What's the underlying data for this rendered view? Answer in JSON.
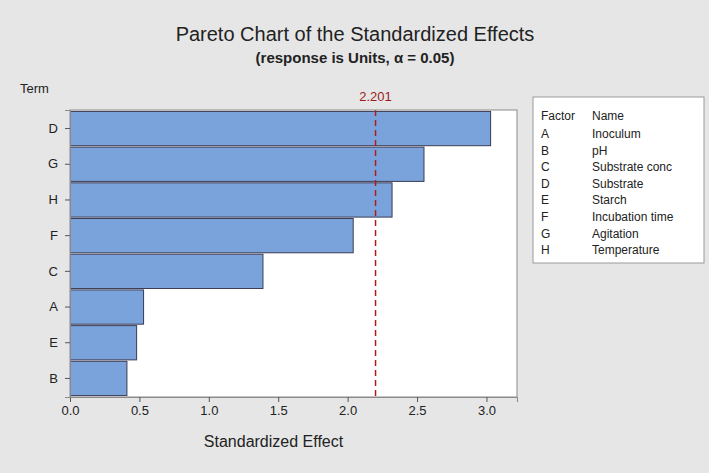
{
  "chart_data": {
    "type": "bar",
    "orientation": "horizontal",
    "title": "Pareto Chart of the Standardized Effects",
    "subtitle": "(response is Units, α = 0.05)",
    "y_label": "Term",
    "x_label": "Standardized Effect",
    "categories": [
      "D",
      "G",
      "H",
      "F",
      "C",
      "A",
      "E",
      "B"
    ],
    "values": [
      3.03,
      2.55,
      2.32,
      2.04,
      1.39,
      0.53,
      0.48,
      0.41
    ],
    "color": "#7ba3db",
    "reference_line": 2.201,
    "xlim": [
      0,
      3.22
    ],
    "xticks": [
      {
        "value": 0,
        "label": "0.0"
      },
      {
        "value": 0.5,
        "label": "0.5"
      },
      {
        "value": 1,
        "label": "1.0"
      },
      {
        "value": 1.5,
        "label": "1.5"
      },
      {
        "value": 2,
        "label": "2.0"
      },
      {
        "value": 2.5,
        "label": "2.5"
      },
      {
        "value": 3,
        "label": "3.0"
      }
    ],
    "grid": false,
    "legend_table": {
      "header": [
        "Factor",
        "Name"
      ],
      "rows": [
        [
          "A",
          "Inoculum"
        ],
        [
          "B",
          "pH"
        ],
        [
          "C",
          "Substrate conc"
        ],
        [
          "D",
          "Substrate"
        ],
        [
          "E",
          "Starch"
        ],
        [
          "F",
          "Incubation time"
        ],
        [
          "G",
          "Agitation"
        ],
        [
          "H",
          "Temperature"
        ]
      ]
    }
  }
}
